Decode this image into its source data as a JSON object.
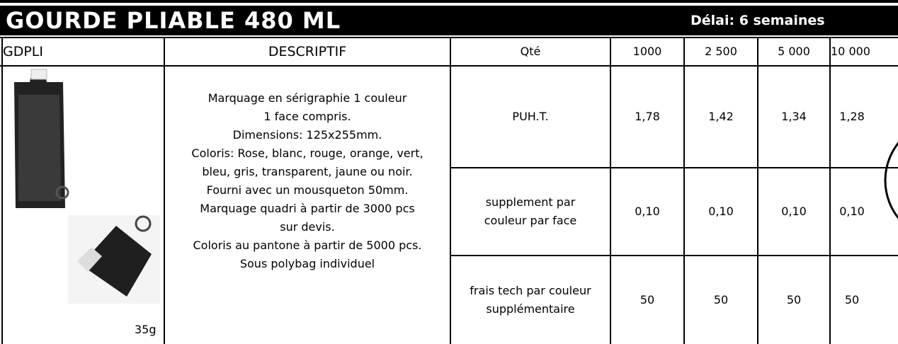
{
  "header": {
    "title": "GOURDE PLIABLE 480 ML",
    "lead_time": "Délai: 6 semaines"
  },
  "table": {
    "columns": [
      "GDPLI",
      "DESCRIPTIF",
      "Qté",
      "1000",
      "2 500",
      "5 000",
      "10 000"
    ],
    "description": [
      "Marquage en sérigraphie 1 couleur",
      "1 face compris.",
      "Dimensions: 125x255mm.",
      "Coloris: Rose, blanc, rouge, orange, vert,",
      "bleu, gris, transparent, jaune ou noir.",
      "Fourni avec un mousqueton 50mm.",
      "Marquage quadri à partir de 3000 pcs",
      "sur devis.",
      "Coloris au pantone à partir de 5000 pcs.",
      "Sous polybag individuel"
    ],
    "weight": "35g",
    "rows": [
      {
        "label": [
          "PUH.T."
        ],
        "prices": [
          "1,78",
          "1,42",
          "1,34",
          "1,28"
        ]
      },
      {
        "label": [
          "supplement par",
          "couleur par face"
        ],
        "prices": [
          "0,10",
          "0,10",
          "0,10",
          "0,10"
        ]
      },
      {
        "label": [
          "frais tech par couleur",
          "supplémentaire"
        ],
        "prices": [
          "50",
          "50",
          "50",
          "50"
        ]
      }
    ]
  }
}
